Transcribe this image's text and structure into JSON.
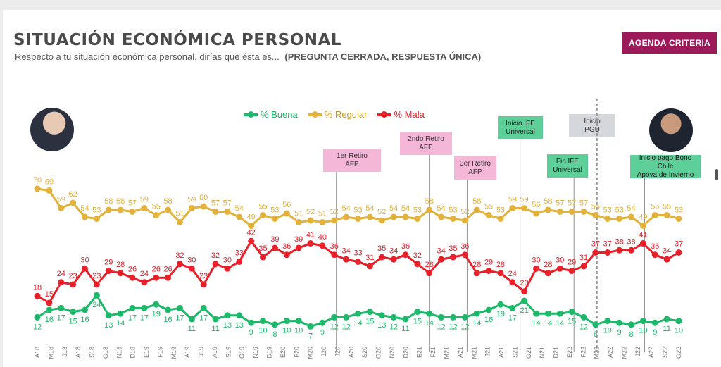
{
  "header": {
    "title": "SITUACIÓN ECONÓMICA PERSONAL",
    "subtitle": "Respecto a tu situación económica personal, dirías que ésta es...",
    "subtitle_note": "(PREGUNTA CERRADA, RESPUESTA ÚNICA)",
    "brand": "AGENDA CRITERIA"
  },
  "colors": {
    "buena": "#1db86a",
    "regular": "#e3b23c",
    "mala": "#e8202a",
    "brand": "#9c1a5a"
  },
  "legend": {
    "buena": "% Buena",
    "regular": "% Regular",
    "mala": "% Mala"
  },
  "annotations": [
    {
      "id": "retiro1",
      "lines": [
        "1er Retiro",
        "AFP"
      ],
      "style": "pink",
      "at": "M20"
    },
    {
      "id": "retiro2",
      "lines": [
        "2ndo Retiro",
        "AFP"
      ],
      "style": "pink",
      "at": "E21"
    },
    {
      "id": "retiro3",
      "lines": [
        "3er Retiro",
        "AFP"
      ],
      "style": "pink",
      "at": "A21"
    },
    {
      "id": "ife_ini",
      "lines": [
        "Inicio IFE",
        "Universal"
      ],
      "style": "green",
      "at": "A21"
    },
    {
      "id": "ife_fin",
      "lines": [
        "Fin IFE",
        "Universal"
      ],
      "style": "green",
      "at": "E22"
    },
    {
      "id": "pgu",
      "lines": [
        "Inicio",
        "PGU"
      ],
      "style": "gray",
      "at": "F22"
    },
    {
      "id": "bono",
      "lines": [
        "Inicio pago Bono Chile",
        "Apoya de Invierno"
      ],
      "style": "green",
      "at": "J22"
    }
  ],
  "chart_data": {
    "type": "line",
    "title": "SITUACIÓN ECONÓMICA PERSONAL",
    "categories": [
      "A18",
      "M18",
      "J18",
      "J18",
      "A18",
      "S18",
      "O18",
      "N18",
      "D18",
      "E19",
      "F19",
      "M19",
      "A19",
      "M19",
      "J19",
      "J19",
      "A19",
      "S19",
      "O19",
      "N19",
      "D19",
      "E20",
      "F20",
      "M20",
      "A20",
      "M20",
      "J20",
      "J20",
      "A20",
      "S20",
      "O20",
      "N20",
      "D20",
      "E21",
      "F21",
      "M21",
      "A21",
      "M21",
      "J21",
      "J21",
      "A21",
      "S21",
      "O21",
      "N21",
      "D21",
      "E22",
      "F22",
      "M22",
      "A22",
      "M22",
      "J22",
      "J22",
      "A22",
      "S22",
      "O22"
    ],
    "tick_labels": [
      "A18",
      "M18",
      "J18",
      "A18",
      "S18",
      "O18",
      "N18",
      "D18",
      "E19",
      "F19",
      "M19",
      "A19",
      "J19",
      "A19",
      "S19",
      "O19",
      "N19",
      "D19",
      "E20",
      "F20",
      "M20",
      "J20",
      "J20",
      "A20",
      "S20",
      "O20",
      "N20",
      "D20",
      "E21",
      "F21",
      "M21",
      "A21",
      "M21",
      "J21",
      "A21",
      "S21",
      "O21",
      "N21",
      "D21",
      "E22",
      "F22",
      "M22",
      "A22",
      "M22",
      "J22",
      "A22",
      "S22",
      "O22"
    ],
    "series": [
      {
        "name": "% Buena",
        "values": [
          12,
          16,
          17,
          15,
          16,
          24,
          13,
          14,
          17,
          17,
          19,
          16,
          17,
          11,
          17,
          11,
          13,
          13,
          9,
          10,
          8,
          10,
          10,
          7,
          9,
          12,
          12,
          14,
          15,
          13,
          12,
          11,
          15,
          14,
          12,
          12,
          12,
          14,
          16,
          19,
          17,
          21,
          14,
          14,
          14,
          15,
          12,
          8,
          10,
          9,
          8,
          10,
          9,
          11,
          10
        ]
      },
      {
        "name": "% Regular",
        "values": [
          70,
          69,
          59,
          62,
          54,
          53,
          58,
          58,
          57,
          59,
          55,
          58,
          51,
          59,
          60,
          57,
          57,
          54,
          49,
          55,
          53,
          56,
          51,
          52,
          51,
          52,
          54,
          53,
          54,
          52,
          54,
          54,
          53,
          58,
          54,
          53,
          52,
          58,
          55,
          53,
          59,
          59,
          56,
          58,
          57,
          57,
          57,
          55,
          53,
          53,
          54,
          49,
          55,
          55,
          53
        ]
      },
      {
        "name": "% Mala",
        "values": [
          18,
          15,
          24,
          23,
          30,
          23,
          29,
          28,
          26,
          24,
          26,
          26,
          32,
          30,
          23,
          32,
          30,
          33,
          42,
          35,
          39,
          36,
          39,
          41,
          40,
          36,
          34,
          33,
          31,
          35,
          34,
          36,
          32,
          28,
          34,
          35,
          36,
          28,
          29,
          28,
          24,
          20,
          30,
          28,
          30,
          29,
          31,
          37,
          37,
          38,
          38,
          41,
          36,
          34,
          37
        ]
      }
    ],
    "ylim": [
      0,
      80
    ],
    "grid": false,
    "legend_position": "top"
  }
}
